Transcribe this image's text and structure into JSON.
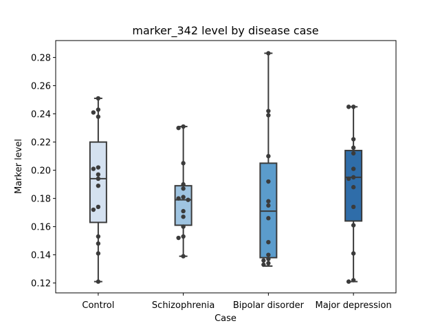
{
  "chart_data": {
    "type": "box",
    "title": "marker_342 level by disease case",
    "xlabel": "Case",
    "ylabel": "Marker level",
    "ylim": [
      0.113,
      0.292
    ],
    "yticks": [
      "0.12",
      "0.14",
      "0.16",
      "0.18",
      "0.20",
      "0.22",
      "0.24",
      "0.26",
      "0.28"
    ],
    "ytick_values": [
      0.12,
      0.14,
      0.16,
      0.18,
      0.2,
      0.22,
      0.24,
      0.26,
      0.28
    ],
    "grid": false,
    "legend": "none",
    "categories": [
      "Control",
      "Schizophrenia",
      "Bipolar disorder",
      "Major depression"
    ],
    "box_colors": [
      "#d4e1f0",
      "#9fc4e1",
      "#5b9ccc",
      "#2f6da9"
    ],
    "boxes": [
      {
        "category": "Control",
        "whisker_low": 0.121,
        "q1": 0.163,
        "median": 0.194,
        "q3": 0.22,
        "whisker_high": 0.251
      },
      {
        "category": "Schizophrenia",
        "whisker_low": 0.139,
        "q1": 0.161,
        "median": 0.179,
        "q3": 0.189,
        "whisker_high": 0.231
      },
      {
        "category": "Bipolar disorder",
        "whisker_low": 0.132,
        "q1": 0.138,
        "median": 0.171,
        "q3": 0.205,
        "whisker_high": 0.283
      },
      {
        "category": "Major depression",
        "whisker_low": 0.121,
        "q1": 0.164,
        "median": 0.195,
        "q3": 0.214,
        "whisker_high": 0.245
      }
    ],
    "points": [
      {
        "category": "Control",
        "values": [
          0.251,
          0.243,
          0.241,
          0.238,
          0.202,
          0.201,
          0.197,
          0.194,
          0.189,
          0.174,
          0.172,
          0.153,
          0.148,
          0.141,
          0.121
        ]
      },
      {
        "category": "Schizophrenia",
        "values": [
          0.231,
          0.23,
          0.205,
          0.19,
          0.187,
          0.181,
          0.18,
          0.179,
          0.171,
          0.167,
          0.16,
          0.153,
          0.152,
          0.139
        ]
      },
      {
        "category": "Bipolar disorder",
        "values": [
          0.283,
          0.242,
          0.239,
          0.21,
          0.192,
          0.178,
          0.175,
          0.166,
          0.149,
          0.14,
          0.137,
          0.136,
          0.134,
          0.133
        ]
      },
      {
        "category": "Major depression",
        "values": [
          0.245,
          0.245,
          0.222,
          0.216,
          0.212,
          0.201,
          0.195,
          0.194,
          0.188,
          0.174,
          0.161,
          0.141,
          0.122,
          0.121
        ]
      }
    ]
  }
}
